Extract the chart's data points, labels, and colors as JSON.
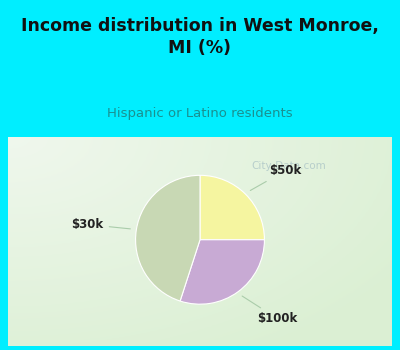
{
  "title": "Income distribution in West Monroe,\nMI (%)",
  "subtitle": "Hispanic or Latino residents",
  "title_color": "#111111",
  "subtitle_color": "#1a9090",
  "bg_color": "#00eeff",
  "chart_bg": "#e8f5ee",
  "slices": [
    {
      "label": "$50k",
      "value": 25,
      "color": "#f5f5a0"
    },
    {
      "label": "$100k",
      "value": 30,
      "color": "#c8aad4"
    },
    {
      "label": "$30k",
      "value": 45,
      "color": "#c8d8b4"
    }
  ],
  "start_angle": 90,
  "watermark": "City-Data.com"
}
